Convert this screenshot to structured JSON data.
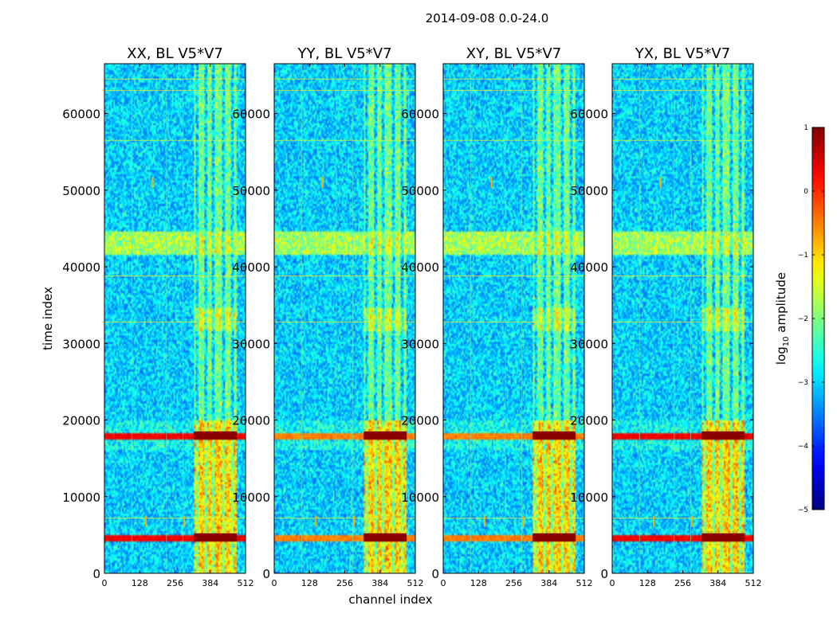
{
  "chart_data": {
    "type": "heatmap",
    "suptitle": "2014-09-08 0.0-24.0",
    "xlabel": "channel index",
    "ylabel": "time index",
    "xlim": [
      0,
      512
    ],
    "ylim": [
      0,
      66500
    ],
    "xticks": [
      0,
      128,
      256,
      384,
      512
    ],
    "yticks": [
      0,
      10000,
      20000,
      30000,
      40000,
      50000,
      60000
    ],
    "panels": [
      {
        "title": "XX, BL V5*V7"
      },
      {
        "title": "YY, BL V5*V7"
      },
      {
        "title": "XY, BL V5*V7"
      },
      {
        "title": "YX, BL V5*V7"
      }
    ],
    "colorbar": {
      "label_prefix": "log",
      "label_sub": "10",
      "label_suffix": " amplitude",
      "range": [
        -5,
        1
      ],
      "ticks": [
        1,
        0,
        -1,
        -2,
        -3,
        -4,
        -5
      ],
      "tick_labels": [
        "1",
        "0",
        "−1",
        "−2",
        "−3",
        "−4",
        "−5"
      ],
      "colormap": "jet"
    },
    "features": {
      "rfi_channel_band": [
        325,
        480
      ],
      "rfi_channel_stripes": [
        335,
        370,
        395,
        430,
        465
      ],
      "strong_time_bands": [
        4700,
        18000
      ],
      "elevated_time_bands": [
        [
          41500,
          44500
        ],
        [
          31500,
          34500
        ],
        [
          0,
          20000
        ]
      ],
      "horizontal_lines": [
        56500,
        63000,
        64500,
        32800,
        38800,
        7200
      ],
      "vertical_lines": [
        100,
        225,
        285
      ],
      "spikes": [
        [
          150,
          6800
        ],
        [
          290,
          6800
        ],
        [
          175,
          51000
        ]
      ]
    }
  }
}
